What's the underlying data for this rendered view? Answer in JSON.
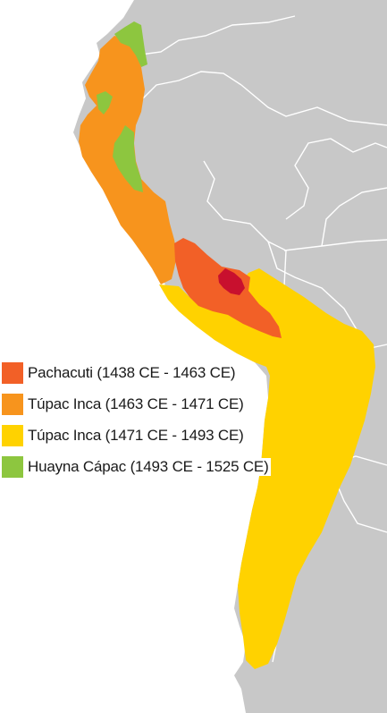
{
  "colors": {
    "ocean": "#ffffff",
    "land": "#c8c8c8",
    "borders": "#ffffff",
    "pachacuti": "#f26027",
    "tupac_early": "#f7941d",
    "tupac_late": "#ffd200",
    "huayna": "#8dc63f",
    "cusco_core": "#c8102e"
  },
  "legend": [
    {
      "label": "Pachacuti (1438 CE - 1463 CE)",
      "color": "#f26027"
    },
    {
      "label": "Túpac Inca (1463 CE - 1471 CE)",
      "color": "#f7941d"
    },
    {
      "label": "Túpac Inca (1471 CE - 1493 CE)",
      "color": "#ffd200"
    },
    {
      "label": "Huayna Cápac (1493 CE - 1525 CE)",
      "color": "#8dc63f"
    }
  ]
}
